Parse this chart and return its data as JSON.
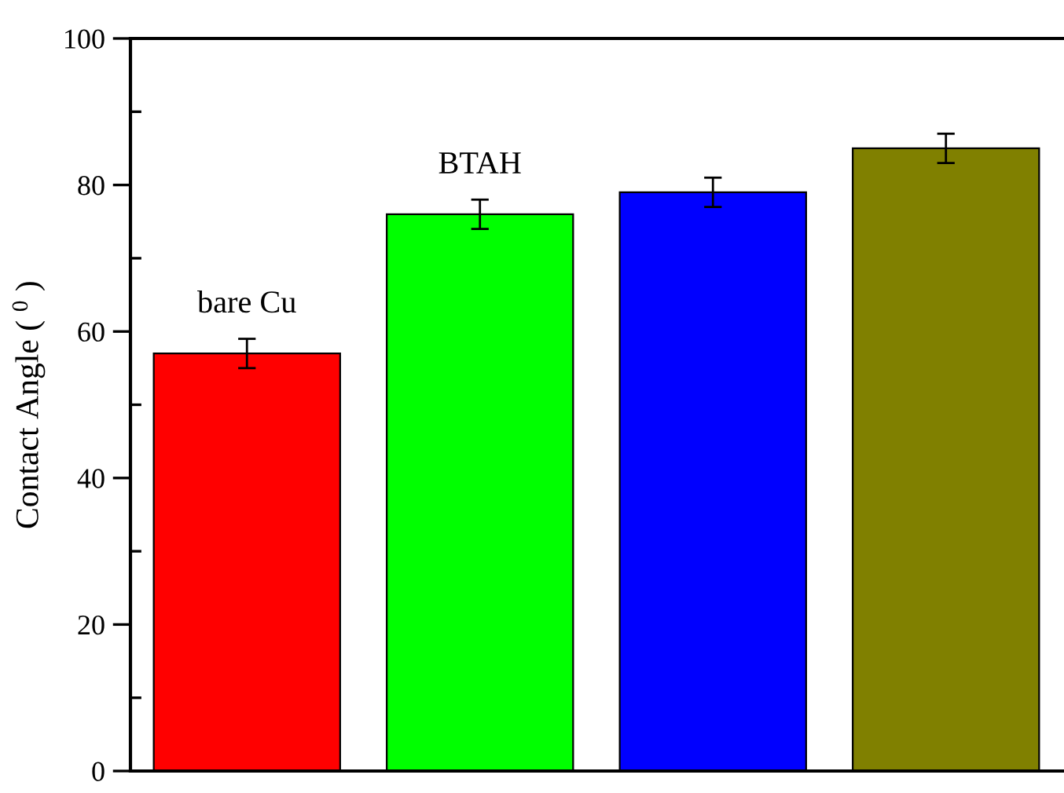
{
  "chart_data": {
    "type": "bar",
    "categories": [
      "bare Cu",
      "BTAH",
      null,
      null
    ],
    "values": [
      57,
      76,
      79,
      85
    ],
    "colors": [
      "#ff0000",
      "#00ff00",
      "#0000ff",
      "#808000"
    ],
    "errors": [
      2,
      2,
      2,
      2
    ],
    "ylabel": "Contact Angle ( $^{0}$ )",
    "ylim": [
      0,
      100
    ],
    "yticks": [
      0,
      {
        "value": 10,
        "label": null
      },
      20,
      {
        "value": 30,
        "label": null
      },
      40,
      {
        "value": 50,
        "label": null
      },
      60,
      {
        "value": 70,
        "label": null
      },
      80,
      {
        "value": 90,
        "label": null
      },
      100
    ],
    "tick_labels": "y"
  }
}
